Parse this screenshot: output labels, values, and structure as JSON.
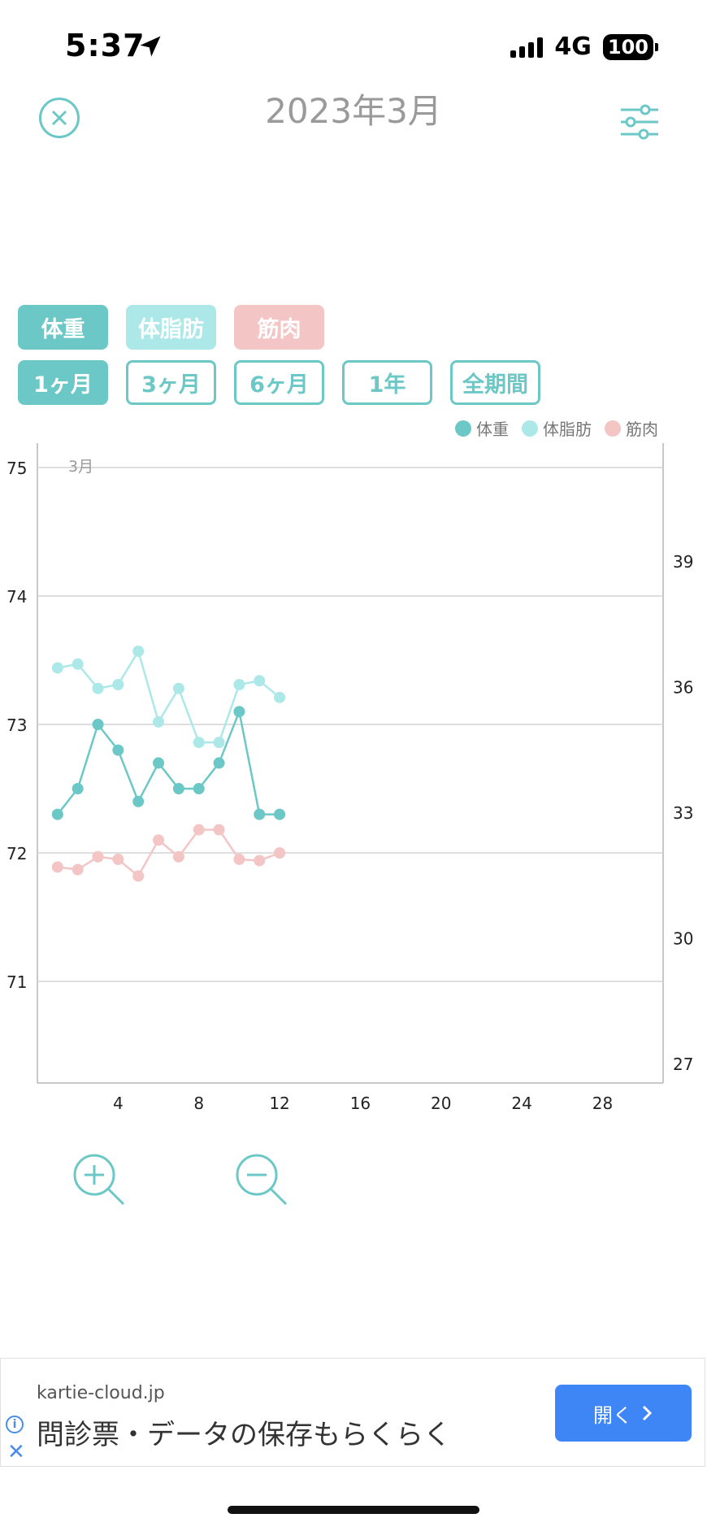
{
  "status": {
    "time": "5:37",
    "network": "4G",
    "battery": "100"
  },
  "header": {
    "title": "2023年3月"
  },
  "metric_tabs": [
    {
      "label": "体重",
      "color": "#6cc8c7"
    },
    {
      "label": "体脂肪",
      "color": "#ade8e9"
    },
    {
      "label": "筋肉",
      "color": "#f4c5c5"
    }
  ],
  "period_tabs": [
    {
      "label": "1ヶ月",
      "active": true
    },
    {
      "label": "3ヶ月",
      "active": false
    },
    {
      "label": "6ヶ月",
      "active": false
    },
    {
      "label": "1年",
      "active": false
    },
    {
      "label": "全期間",
      "active": false
    }
  ],
  "legend": [
    {
      "label": "体重",
      "color": "#6cc8c7"
    },
    {
      "label": "体脂肪",
      "color": "#ade8e9"
    },
    {
      "label": "筋肉",
      "color": "#f4c5c5"
    }
  ],
  "chart_data": {
    "type": "line",
    "month_label": "3月",
    "xlim": [
      0,
      31
    ],
    "x_ticks": [
      4,
      8,
      12,
      16,
      20,
      24,
      28
    ],
    "y_left": {
      "ticks": [
        71,
        72,
        73,
        74,
        75
      ],
      "range": [
        70.2,
        75.2
      ]
    },
    "y_right": {
      "ticks": [
        27,
        30,
        33,
        36,
        39
      ]
    },
    "x": [
      1,
      2,
      3,
      4,
      5,
      6,
      7,
      8,
      9,
      10,
      11,
      12
    ],
    "series": [
      {
        "name": "体重",
        "color": "#6cc8c7",
        "axis": "left",
        "values": [
          72.3,
          72.5,
          73.0,
          72.8,
          72.4,
          72.7,
          72.5,
          72.5,
          72.7,
          73.1,
          72.3,
          72.3
        ]
      },
      {
        "name": "体脂肪",
        "color": "#ade8e9",
        "axis": "left",
        "values": [
          73.44,
          73.47,
          73.28,
          73.31,
          73.57,
          73.02,
          73.28,
          72.86,
          72.86,
          73.31,
          73.34,
          73.21
        ]
      },
      {
        "name": "筋肉",
        "color": "#f4c5c5",
        "axis": "left",
        "values": [
          71.89,
          71.87,
          71.97,
          71.95,
          71.82,
          72.1,
          71.97,
          72.18,
          72.18,
          71.95,
          71.94,
          72.0
        ]
      }
    ],
    "grid": true
  },
  "ad": {
    "domain": "kartie-cloud.jp",
    "text": "問診票・データの保存もらくらく",
    "button": "開く"
  }
}
